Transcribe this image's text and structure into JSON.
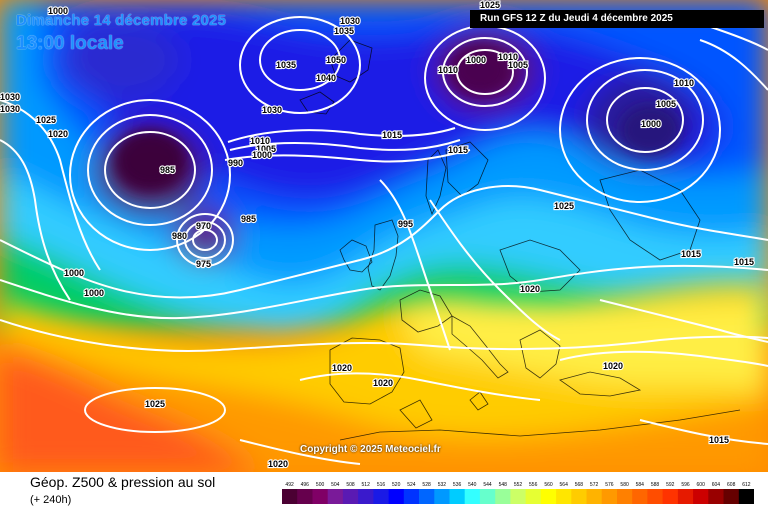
{
  "header": {
    "date_text": "Dimanche 14 décembre 2025",
    "time_text": "13:00 locale",
    "run_text": "Run GFS 12 Z du Jeudi 4 décembre 2025"
  },
  "copyright": "Copyright © 2025 Meteociel.fr",
  "footer": {
    "title": "Géop. Z500 & pression au sol",
    "range": "(+ 240h)"
  },
  "legend": {
    "values": [
      "492",
      "496",
      "500",
      "504",
      "508",
      "512",
      "516",
      "520",
      "524",
      "528",
      "532",
      "536",
      "540",
      "544",
      "548",
      "552",
      "556",
      "560",
      "564",
      "568",
      "572",
      "576",
      "580",
      "584",
      "588",
      "592",
      "596",
      "600",
      "604",
      "608",
      "612"
    ],
    "colors": [
      "#4b0033",
      "#66004d",
      "#800066",
      "#7a1a99",
      "#5a1ab3",
      "#3a1acc",
      "#1a1ae6",
      "#0000ff",
      "#0033ff",
      "#0066ff",
      "#0099ff",
      "#00ccff",
      "#33ffff",
      "#66ffcc",
      "#99ff99",
      "#ccff66",
      "#e6ff33",
      "#ffff00",
      "#ffe600",
      "#ffcc00",
      "#ffb300",
      "#ff9900",
      "#ff8000",
      "#ff6600",
      "#ff4d00",
      "#ff3300",
      "#e61a00",
      "#cc0000",
      "#990000",
      "#660000",
      "#000000"
    ]
  },
  "isobars": [
    "1000",
    "1030",
    "1035",
    "1030",
    "1030",
    "1025",
    "1020",
    "1035",
    "1050",
    "1040",
    "1030",
    "1015",
    "1010",
    "1005",
    "1000",
    "990",
    "985",
    "1025",
    "1010",
    "1005",
    "1000",
    "1010",
    "1015",
    "1005",
    "1000",
    "1010",
    "1025",
    "970",
    "980",
    "985",
    "975",
    "995",
    "1015",
    "1000",
    "1000",
    "1020",
    "1020",
    "1020",
    "1020",
    "1025",
    "1015",
    "1020",
    "1015"
  ]
}
